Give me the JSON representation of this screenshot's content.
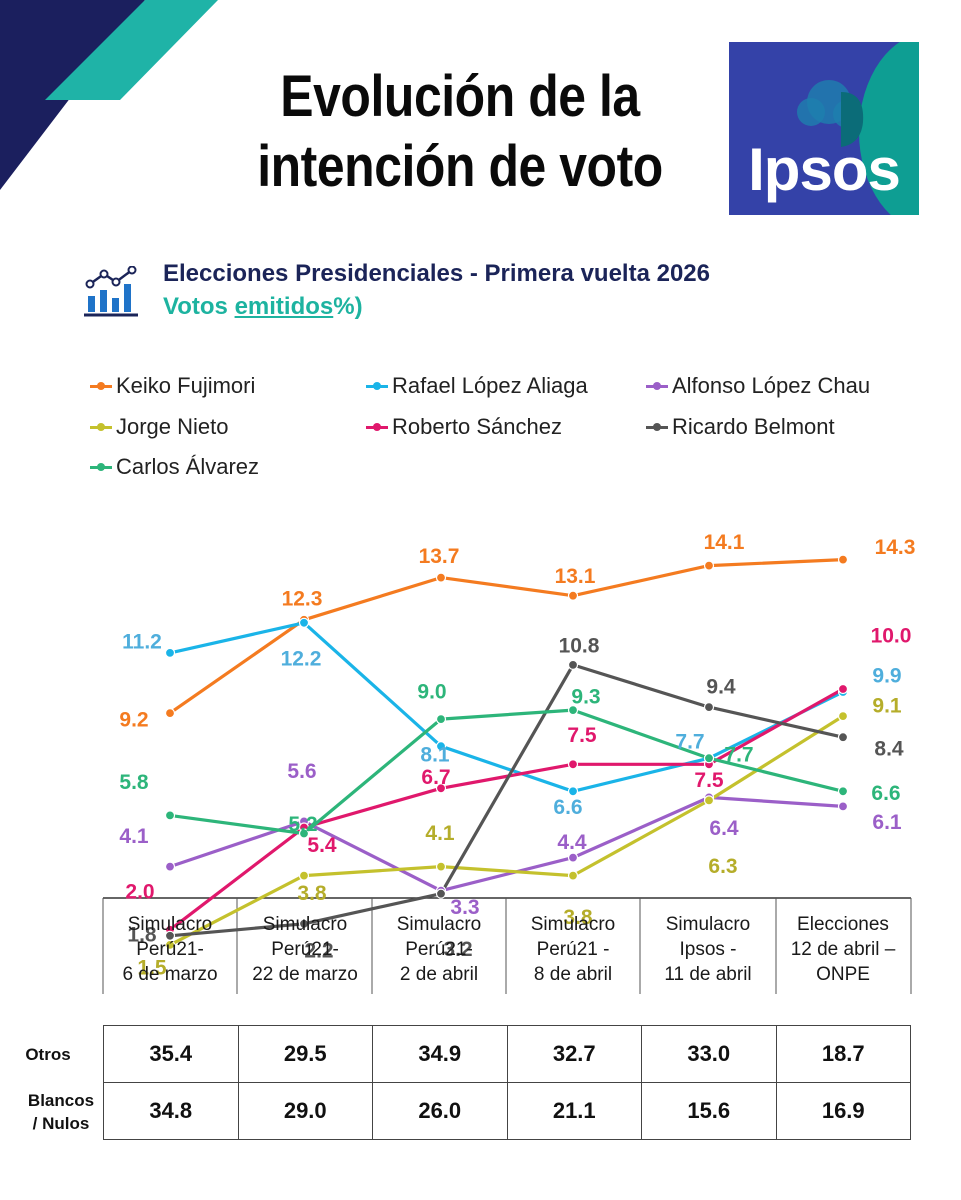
{
  "header": {
    "title": "Evolución de la intención de voto",
    "logo_text": "Ipsos",
    "subtitle": "Elecciones Presidenciales - Primera vuelta 2026",
    "subtitle2_pre": "Votos ",
    "subtitle2_link": "emitidos",
    "subtitle2_post": "%)"
  },
  "colors": {
    "navy": "#1b1f5e",
    "teal": "#1fb3a7",
    "logo_blue": "#3442a8",
    "logo_teal": "#0e9e93"
  },
  "chart_data": {
    "type": "line",
    "title": "Elecciones Presidenciales - Primera vuelta 2026",
    "categories": [
      "Simulacro\nPerú21-\n6 de marzo",
      "Simulacro\nPerú21-\n22 de marzo",
      "Simulacro\nPerú21-\n2 de abril",
      "Simulacro\nPerú21 -\n8 de abril",
      "Simulacro\nIpsos -\n11 de abril",
      "Elecciones\n12 de abril –\nONPE"
    ],
    "ylim": [
      0,
      16
    ],
    "grid": false,
    "legend": "top",
    "series": [
      {
        "name": "Keiko Fujimori",
        "color": "#f47b20",
        "values": [
          9.2,
          12.3,
          13.7,
          13.1,
          14.1,
          14.3
        ]
      },
      {
        "name": "Rafael López Aliaga",
        "color": "#1ab4e8",
        "label_color": "#4faedc",
        "values": [
          11.2,
          12.2,
          8.1,
          6.6,
          7.7,
          9.9
        ]
      },
      {
        "name": "Alfonso López Chau",
        "color": "#9b5fc8",
        "values": [
          4.1,
          5.6,
          3.3,
          4.4,
          6.4,
          6.1
        ]
      },
      {
        "name": "Jorge Nieto",
        "color": "#c4c12d",
        "label_color": "#b5ad2a",
        "values": [
          1.5,
          3.8,
          4.1,
          3.8,
          6.3,
          9.1
        ]
      },
      {
        "name": "Roberto Sánchez",
        "color": "#e0186c",
        "values": [
          2.0,
          5.4,
          6.7,
          7.5,
          7.5,
          10.0
        ]
      },
      {
        "name": "Ricardo Belmont",
        "color": "#555555",
        "values": [
          1.8,
          2.2,
          3.2,
          10.8,
          9.4,
          8.4
        ]
      },
      {
        "name": "Carlos Álvarez",
        "color": "#2db57a",
        "values": [
          5.8,
          5.2,
          9.0,
          9.3,
          7.7,
          6.6
        ]
      }
    ]
  },
  "table": {
    "rows": [
      {
        "label": "Otros",
        "values": [
          "35.4",
          "29.5",
          "34.9",
          "32.7",
          "33.0",
          "18.7"
        ]
      },
      {
        "label": "Blancos\n/ Nulos",
        "values": [
          "34.8",
          "29.0",
          "26.0",
          "21.1",
          "15.6",
          "16.9"
        ]
      }
    ]
  }
}
